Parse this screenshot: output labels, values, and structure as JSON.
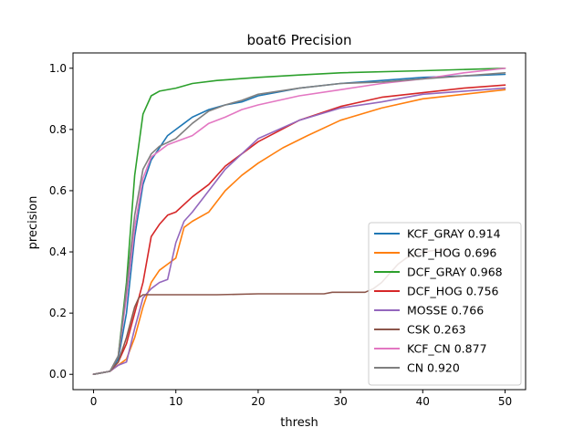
{
  "chart_data": {
    "type": "line",
    "title": "boat6 Precision",
    "xlabel": "thresh",
    "ylabel": "precision",
    "xlim": [
      -2.5,
      52.5
    ],
    "ylim": [
      -0.05,
      1.05
    ],
    "xticks": [
      0,
      10,
      20,
      30,
      40,
      50
    ],
    "yticks": [
      0.0,
      0.2,
      0.4,
      0.6,
      0.8,
      1.0
    ],
    "xtick_labels": [
      "0",
      "10",
      "20",
      "30",
      "40",
      "50"
    ],
    "ytick_labels": [
      "0.0",
      "0.2",
      "0.4",
      "0.6",
      "0.8",
      "1.0"
    ],
    "grid": false,
    "legend_position": "lower-right",
    "series": [
      {
        "name": "KCF_GRAY 0.914",
        "color": "#1f77b4",
        "points": [
          [
            0,
            0
          ],
          [
            1,
            0.005
          ],
          [
            2,
            0.01
          ],
          [
            3,
            0.05
          ],
          [
            4,
            0.2
          ],
          [
            5,
            0.45
          ],
          [
            6,
            0.62
          ],
          [
            7,
            0.7
          ],
          [
            8,
            0.74
          ],
          [
            9,
            0.78
          ],
          [
            10,
            0.8
          ],
          [
            11,
            0.82
          ],
          [
            12,
            0.84
          ],
          [
            14,
            0.865
          ],
          [
            16,
            0.88
          ],
          [
            18,
            0.89
          ],
          [
            20,
            0.91
          ],
          [
            25,
            0.935
          ],
          [
            30,
            0.95
          ],
          [
            35,
            0.96
          ],
          [
            40,
            0.97
          ],
          [
            45,
            0.975
          ],
          [
            50,
            0.98
          ]
        ]
      },
      {
        "name": "KCF_HOG 0.696",
        "color": "#ff7f0e",
        "points": [
          [
            0,
            0
          ],
          [
            2,
            0.01
          ],
          [
            3,
            0.03
          ],
          [
            4,
            0.05
          ],
          [
            5,
            0.12
          ],
          [
            6,
            0.22
          ],
          [
            7,
            0.3
          ],
          [
            8,
            0.34
          ],
          [
            9,
            0.36
          ],
          [
            10,
            0.38
          ],
          [
            11,
            0.48
          ],
          [
            12,
            0.5
          ],
          [
            14,
            0.53
          ],
          [
            16,
            0.6
          ],
          [
            18,
            0.65
          ],
          [
            20,
            0.69
          ],
          [
            23,
            0.74
          ],
          [
            26,
            0.78
          ],
          [
            30,
            0.83
          ],
          [
            35,
            0.87
          ],
          [
            40,
            0.9
          ],
          [
            45,
            0.915
          ],
          [
            50,
            0.93
          ]
        ]
      },
      {
        "name": "DCF_GRAY 0.968",
        "color": "#2ca02c",
        "points": [
          [
            0,
            0
          ],
          [
            1,
            0.005
          ],
          [
            2,
            0.01
          ],
          [
            3,
            0.06
          ],
          [
            4,
            0.3
          ],
          [
            5,
            0.65
          ],
          [
            6,
            0.85
          ],
          [
            7,
            0.91
          ],
          [
            8,
            0.925
          ],
          [
            10,
            0.935
          ],
          [
            12,
            0.95
          ],
          [
            15,
            0.96
          ],
          [
            20,
            0.97
          ],
          [
            25,
            0.978
          ],
          [
            30,
            0.985
          ],
          [
            40,
            0.992
          ],
          [
            50,
            1.0
          ]
        ]
      },
      {
        "name": "DCF_HOG 0.756",
        "color": "#d62728",
        "points": [
          [
            0,
            0
          ],
          [
            2,
            0.01
          ],
          [
            3,
            0.04
          ],
          [
            4,
            0.1
          ],
          [
            5,
            0.2
          ],
          [
            6,
            0.3
          ],
          [
            7,
            0.45
          ],
          [
            8,
            0.49
          ],
          [
            9,
            0.52
          ],
          [
            10,
            0.53
          ],
          [
            12,
            0.58
          ],
          [
            14,
            0.62
          ],
          [
            16,
            0.68
          ],
          [
            18,
            0.72
          ],
          [
            20,
            0.76
          ],
          [
            25,
            0.83
          ],
          [
            30,
            0.875
          ],
          [
            35,
            0.905
          ],
          [
            40,
            0.92
          ],
          [
            45,
            0.935
          ],
          [
            50,
            0.945
          ]
        ]
      },
      {
        "name": "MOSSE 0.766",
        "color": "#9467bd",
        "points": [
          [
            0,
            0
          ],
          [
            2,
            0.01
          ],
          [
            3,
            0.03
          ],
          [
            4,
            0.04
          ],
          [
            5,
            0.15
          ],
          [
            6,
            0.25
          ],
          [
            7,
            0.28
          ],
          [
            8,
            0.3
          ],
          [
            9,
            0.31
          ],
          [
            10,
            0.43
          ],
          [
            11,
            0.5
          ],
          [
            12,
            0.53
          ],
          [
            14,
            0.6
          ],
          [
            16,
            0.67
          ],
          [
            18,
            0.72
          ],
          [
            20,
            0.77
          ],
          [
            25,
            0.83
          ],
          [
            30,
            0.87
          ],
          [
            35,
            0.89
          ],
          [
            40,
            0.915
          ],
          [
            45,
            0.925
          ],
          [
            50,
            0.935
          ]
        ]
      },
      {
        "name": "CSK 0.263",
        "color": "#8c564b",
        "points": [
          [
            0,
            0
          ],
          [
            1,
            0.005
          ],
          [
            2,
            0.01
          ],
          [
            3,
            0.04
          ],
          [
            4,
            0.12
          ],
          [
            5,
            0.22
          ],
          [
            5.5,
            0.25
          ],
          [
            6,
            0.26
          ],
          [
            8,
            0.26
          ],
          [
            10,
            0.26
          ],
          [
            15,
            0.26
          ],
          [
            20,
            0.263
          ],
          [
            25,
            0.263
          ],
          [
            28,
            0.263
          ],
          [
            29,
            0.268
          ],
          [
            33,
            0.268
          ],
          [
            34,
            0.28
          ],
          [
            35,
            0.3
          ],
          [
            36,
            0.33
          ],
          [
            37,
            0.36
          ],
          [
            38,
            0.38
          ],
          [
            40,
            0.4
          ],
          [
            43,
            0.41
          ]
        ]
      },
      {
        "name": "KCF_CN 0.877",
        "color": "#e377c2",
        "points": [
          [
            0,
            0
          ],
          [
            2,
            0.01
          ],
          [
            3,
            0.06
          ],
          [
            4,
            0.25
          ],
          [
            5,
            0.48
          ],
          [
            6,
            0.64
          ],
          [
            7,
            0.71
          ],
          [
            8,
            0.73
          ],
          [
            9,
            0.75
          ],
          [
            10,
            0.76
          ],
          [
            12,
            0.78
          ],
          [
            14,
            0.82
          ],
          [
            16,
            0.84
          ],
          [
            18,
            0.865
          ],
          [
            20,
            0.88
          ],
          [
            25,
            0.91
          ],
          [
            30,
            0.93
          ],
          [
            35,
            0.95
          ],
          [
            40,
            0.965
          ],
          [
            45,
            0.985
          ],
          [
            50,
            1.0
          ]
        ]
      },
      {
        "name": "CN 0.920",
        "color": "#7f7f7f",
        "points": [
          [
            0,
            0
          ],
          [
            1,
            0.005
          ],
          [
            2,
            0.01
          ],
          [
            3,
            0.06
          ],
          [
            4,
            0.28
          ],
          [
            5,
            0.52
          ],
          [
            6,
            0.67
          ],
          [
            7,
            0.72
          ],
          [
            8,
            0.745
          ],
          [
            10,
            0.77
          ],
          [
            12,
            0.82
          ],
          [
            14,
            0.86
          ],
          [
            16,
            0.88
          ],
          [
            18,
            0.895
          ],
          [
            20,
            0.915
          ],
          [
            25,
            0.935
          ],
          [
            30,
            0.95
          ],
          [
            35,
            0.955
          ],
          [
            40,
            0.965
          ],
          [
            45,
            0.975
          ],
          [
            50,
            0.985
          ]
        ]
      }
    ]
  }
}
